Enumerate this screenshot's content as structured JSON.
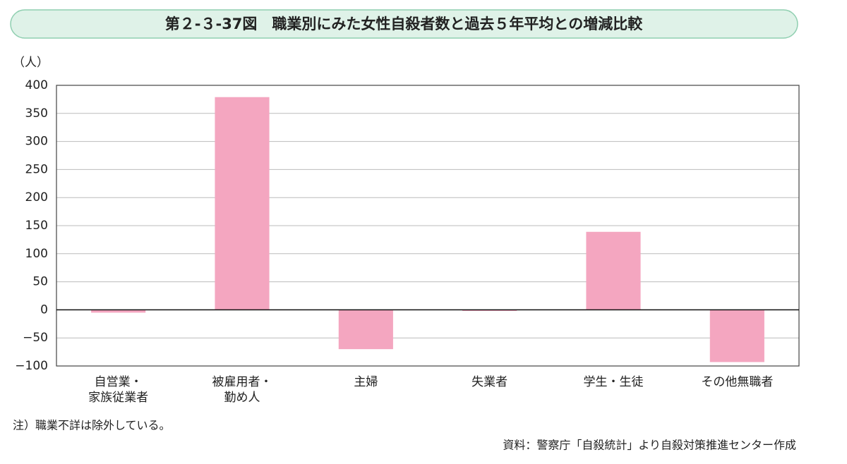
{
  "chart_data": {
    "type": "bar",
    "title": "第２-３-37図　職業別にみた女性自殺者数と過去５年平均との増減比較",
    "y_label": "（人）",
    "categories": [
      "自営業・\n家族従業者",
      "被雇用者・\n勤め人",
      "主婦",
      "失業者",
      "学生・生徒",
      "その他無職者"
    ],
    "values": [
      -5,
      379,
      -70,
      -2,
      139,
      -93
    ],
    "color": "#f4a6c0",
    "ylim": [
      -100,
      400
    ],
    "yticks": [
      {
        "value": -100,
        "label": "−100"
      },
      {
        "value": -50,
        "label": "−50"
      },
      0,
      50,
      100,
      150,
      200,
      250,
      300,
      350,
      400
    ],
    "grid": true,
    "note": "注）職業不詳は除外している。",
    "source": "資料：警察庁「自殺統計」より自殺対策推進センター作成"
  }
}
